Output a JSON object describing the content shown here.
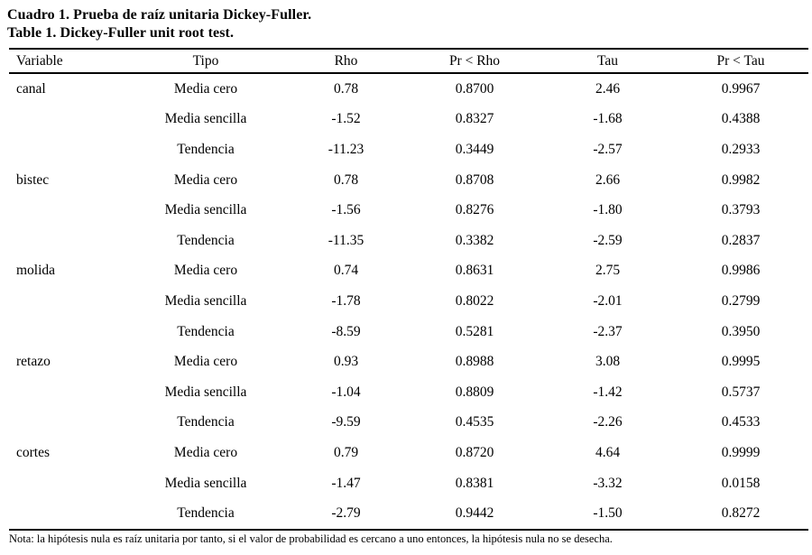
{
  "caption": {
    "es": "Cuadro 1. Prueba de raíz unitaria Dickey-Fuller.",
    "en": "Table 1. Dickey-Fuller unit root test."
  },
  "table": {
    "columns": [
      "Variable",
      "Tipo",
      "Rho",
      "Pr < Rho",
      "Tau",
      "Pr < Tau"
    ],
    "rows": [
      [
        "canal",
        "Media cero",
        "0.78",
        "0.8700",
        "2.46",
        "0.9967"
      ],
      [
        "",
        "Media sencilla",
        "-1.52",
        "0.8327",
        "-1.68",
        "0.4388"
      ],
      [
        "",
        "Tendencia",
        "-11.23",
        "0.3449",
        "-2.57",
        "0.2933"
      ],
      [
        "bistec",
        "Media cero",
        "0.78",
        "0.8708",
        "2.66",
        "0.9982"
      ],
      [
        "",
        "Media sencilla",
        "-1.56",
        "0.8276",
        "-1.80",
        "0.3793"
      ],
      [
        "",
        "Tendencia",
        "-11.35",
        "0.3382",
        "-2.59",
        "0.2837"
      ],
      [
        "molida",
        "Media cero",
        "0.74",
        "0.8631",
        "2.75",
        "0.9986"
      ],
      [
        "",
        "Media sencilla",
        "-1.78",
        "0.8022",
        "-2.01",
        "0.2799"
      ],
      [
        "",
        "Tendencia",
        "-8.59",
        "0.5281",
        "-2.37",
        "0.3950"
      ],
      [
        "retazo",
        "Media cero",
        "0.93",
        "0.8988",
        "3.08",
        "0.9995"
      ],
      [
        "",
        "Media sencilla",
        "-1.04",
        "0.8809",
        "-1.42",
        "0.5737"
      ],
      [
        "",
        "Tendencia",
        "-9.59",
        "0.4535",
        "-2.26",
        "0.4533"
      ],
      [
        "cortes",
        "Media cero",
        "0.79",
        "0.8720",
        "4.64",
        "0.9999"
      ],
      [
        "",
        "Media sencilla",
        "-1.47",
        "0.8381",
        "-3.32",
        "0.0158"
      ],
      [
        "",
        "Tendencia",
        "-2.79",
        "0.9442",
        "-1.50",
        "0.8272"
      ]
    ]
  },
  "note": "Nota: la hipótesis nula es raíz unitaria por tanto, si el valor de probabilidad es cercano a uno entonces, la hipótesis nula no se desecha.",
  "colors": {
    "text": "#000000",
    "background": "#ffffff",
    "rule": "#000000"
  }
}
